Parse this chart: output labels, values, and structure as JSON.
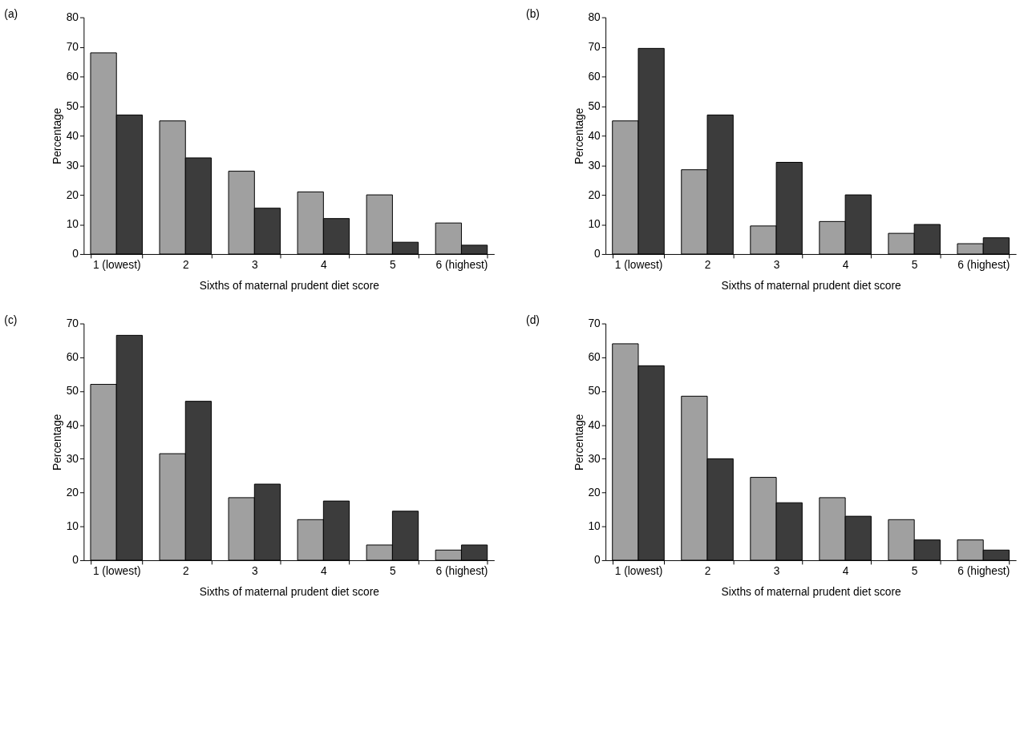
{
  "chart_data": [
    {
      "type": "bar",
      "title": "(a)",
      "xlabel": "Sixths of maternal prudent diet score",
      "ylabel": "Percentage",
      "categories": [
        "1 (lowest)",
        "2",
        "3",
        "4",
        "5",
        "6 (highest)"
      ],
      "ylim": [
        0,
        80
      ],
      "yticks": [
        0,
        10,
        20,
        30,
        40,
        50,
        60,
        70,
        80
      ],
      "grid": false,
      "series": [
        {
          "color": "#a0a0a0",
          "values": [
            68,
            45,
            28,
            21,
            20,
            10.5
          ]
        },
        {
          "color": "#3c3c3c",
          "values": [
            47,
            32.5,
            15.5,
            12,
            4,
            3
          ]
        }
      ]
    },
    {
      "type": "bar",
      "title": "(b)",
      "xlabel": "Sixths of maternal prudent diet score",
      "ylabel": "Percentage",
      "categories": [
        "1 (lowest)",
        "2",
        "3",
        "4",
        "5",
        "6 (highest)"
      ],
      "ylim": [
        0,
        80
      ],
      "yticks": [
        0,
        10,
        20,
        30,
        40,
        50,
        60,
        70,
        80
      ],
      "grid": false,
      "series": [
        {
          "color": "#a0a0a0",
          "values": [
            45,
            28.5,
            9.5,
            11,
            7,
            3.5
          ]
        },
        {
          "color": "#3c3c3c",
          "values": [
            69.5,
            47,
            31,
            20,
            10,
            5.5
          ]
        }
      ]
    },
    {
      "type": "bar",
      "title": "(c)",
      "xlabel": "Sixths of maternal prudent diet score",
      "ylabel": "Percentage",
      "categories": [
        "1 (lowest)",
        "2",
        "3",
        "4",
        "5",
        "6 (highest)"
      ],
      "ylim": [
        0,
        70
      ],
      "yticks": [
        0,
        10,
        20,
        30,
        40,
        50,
        60,
        70
      ],
      "grid": false,
      "series": [
        {
          "color": "#a0a0a0",
          "values": [
            52,
            31.5,
            18.5,
            12,
            4.5,
            3
          ]
        },
        {
          "color": "#3c3c3c",
          "values": [
            66.5,
            47,
            22.5,
            17.5,
            14.5,
            4.5
          ]
        }
      ]
    },
    {
      "type": "bar",
      "title": "(d)",
      "xlabel": "Sixths of maternal prudent diet score",
      "ylabel": "Percentage",
      "categories": [
        "1 (lowest)",
        "2",
        "3",
        "4",
        "5",
        "6 (highest)"
      ],
      "ylim": [
        0,
        70
      ],
      "yticks": [
        0,
        10,
        20,
        30,
        40,
        50,
        60,
        70
      ],
      "grid": false,
      "series": [
        {
          "color": "#a0a0a0",
          "values": [
            64,
            48.5,
            24.5,
            18.5,
            12,
            6
          ]
        },
        {
          "color": "#3c3c3c",
          "values": [
            57.5,
            30,
            17,
            13,
            6,
            3
          ]
        }
      ]
    }
  ]
}
